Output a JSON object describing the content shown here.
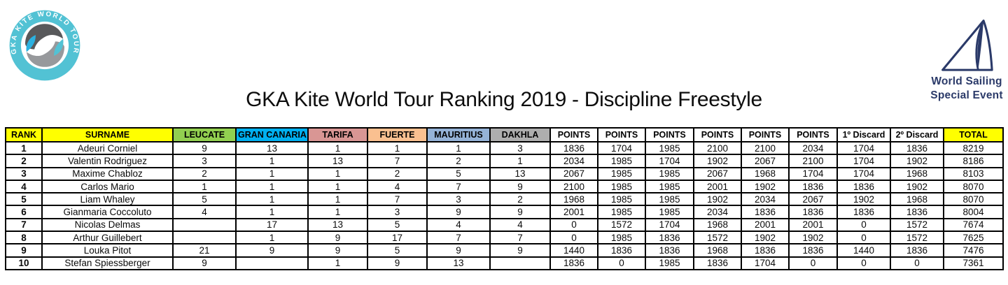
{
  "title": "GKA Kite World Tour Ranking 2019 - Discipline Freestyle",
  "colors": {
    "teal": "#52c2d4",
    "navy": "#2b3a69",
    "swirl_dark_gray": "#58595b",
    "swirl_light_gray": "#97999c",
    "swirl_blue": "#2bb1e0",
    "header_yellow": "#ffff00",
    "header_green": "#92d050",
    "header_blue": "#00b0f0",
    "header_rose": "#d99694",
    "header_peach": "#fac090",
    "header_steel_blue": "#95b3d7",
    "header_gray": "#aeaeae"
  },
  "logos": {
    "gka": {
      "ring_text": "GKA KITE WORLD TOUR"
    },
    "world_sailing": {
      "line1": "World Sailing",
      "line2": "Special Event"
    }
  },
  "table": {
    "columns": [
      {
        "label": "RANK",
        "bg": "#ffff00"
      },
      {
        "label": "SURNAME",
        "bg": "#ffff00"
      },
      {
        "label": "LEUCATE",
        "bg": "#92d050"
      },
      {
        "label": "GRAN CANARIA",
        "bg": "#00b0f0"
      },
      {
        "label": "TARIFA",
        "bg": "#d99694"
      },
      {
        "label": "FUERTE",
        "bg": "#fac090"
      },
      {
        "label": "MAURITIUS",
        "bg": "#95b3d7"
      },
      {
        "label": "DAKHLA",
        "bg": "#aeaeae"
      },
      {
        "label": "POINTS",
        "bg": "#ffffff"
      },
      {
        "label": "POINTS",
        "bg": "#ffffff"
      },
      {
        "label": "POINTS",
        "bg": "#ffffff"
      },
      {
        "label": "POINTS",
        "bg": "#ffffff"
      },
      {
        "label": "POINTS",
        "bg": "#ffffff"
      },
      {
        "label": "POINTS",
        "bg": "#ffffff"
      },
      {
        "label": "1º Discard",
        "bg": "#ffffff"
      },
      {
        "label": "2º Discard",
        "bg": "#ffffff"
      },
      {
        "label": "TOTAL",
        "bg": "#ffff00"
      }
    ],
    "rows": [
      [
        "1",
        "Adeuri Corniel",
        "9",
        "13",
        "1",
        "1",
        "1",
        "3",
        "1836",
        "1704",
        "1985",
        "2100",
        "2100",
        "2034",
        "1704",
        "1836",
        "8219"
      ],
      [
        "2",
        "Valentin Rodriguez",
        "3",
        "1",
        "13",
        "7",
        "2",
        "1",
        "2034",
        "1985",
        "1704",
        "1902",
        "2067",
        "2100",
        "1704",
        "1902",
        "8186"
      ],
      [
        "3",
        "Maxime Chabloz",
        "2",
        "1",
        "1",
        "2",
        "5",
        "13",
        "2067",
        "1985",
        "1985",
        "2067",
        "1968",
        "1704",
        "1704",
        "1968",
        "8103"
      ],
      [
        "4",
        "Carlos Mario",
        "1",
        "1",
        "1",
        "4",
        "7",
        "9",
        "2100",
        "1985",
        "1985",
        "2001",
        "1902",
        "1836",
        "1836",
        "1902",
        "8070"
      ],
      [
        "5",
        "Liam Whaley",
        "5",
        "1",
        "1",
        "7",
        "3",
        "2",
        "1968",
        "1985",
        "1985",
        "1902",
        "2034",
        "2067",
        "1902",
        "1968",
        "8070"
      ],
      [
        "6",
        "Gianmaria Coccoluto",
        "4",
        "1",
        "1",
        "3",
        "9",
        "9",
        "2001",
        "1985",
        "1985",
        "2034",
        "1836",
        "1836",
        "1836",
        "1836",
        "8004"
      ],
      [
        "7",
        "Nicolas Delmas",
        "",
        "17",
        "13",
        "5",
        "4",
        "4",
        "0",
        "1572",
        "1704",
        "1968",
        "2001",
        "2001",
        "0",
        "1572",
        "7674"
      ],
      [
        "8",
        "Arthur Guillebert",
        "",
        "1",
        "9",
        "17",
        "7",
        "7",
        "0",
        "1985",
        "1836",
        "1572",
        "1902",
        "1902",
        "0",
        "1572",
        "7625"
      ],
      [
        "9",
        "Louka Pitot",
        "21",
        "9",
        "9",
        "5",
        "9",
        "9",
        "1440",
        "1836",
        "1836",
        "1968",
        "1836",
        "1836",
        "1440",
        "1836",
        "7476"
      ],
      [
        "10",
        "Stefan Spiessberger",
        "9",
        "",
        "1",
        "9",
        "13",
        "",
        "1836",
        "0",
        "1985",
        "1836",
        "1704",
        "0",
        "0",
        "0",
        "7361"
      ]
    ]
  }
}
